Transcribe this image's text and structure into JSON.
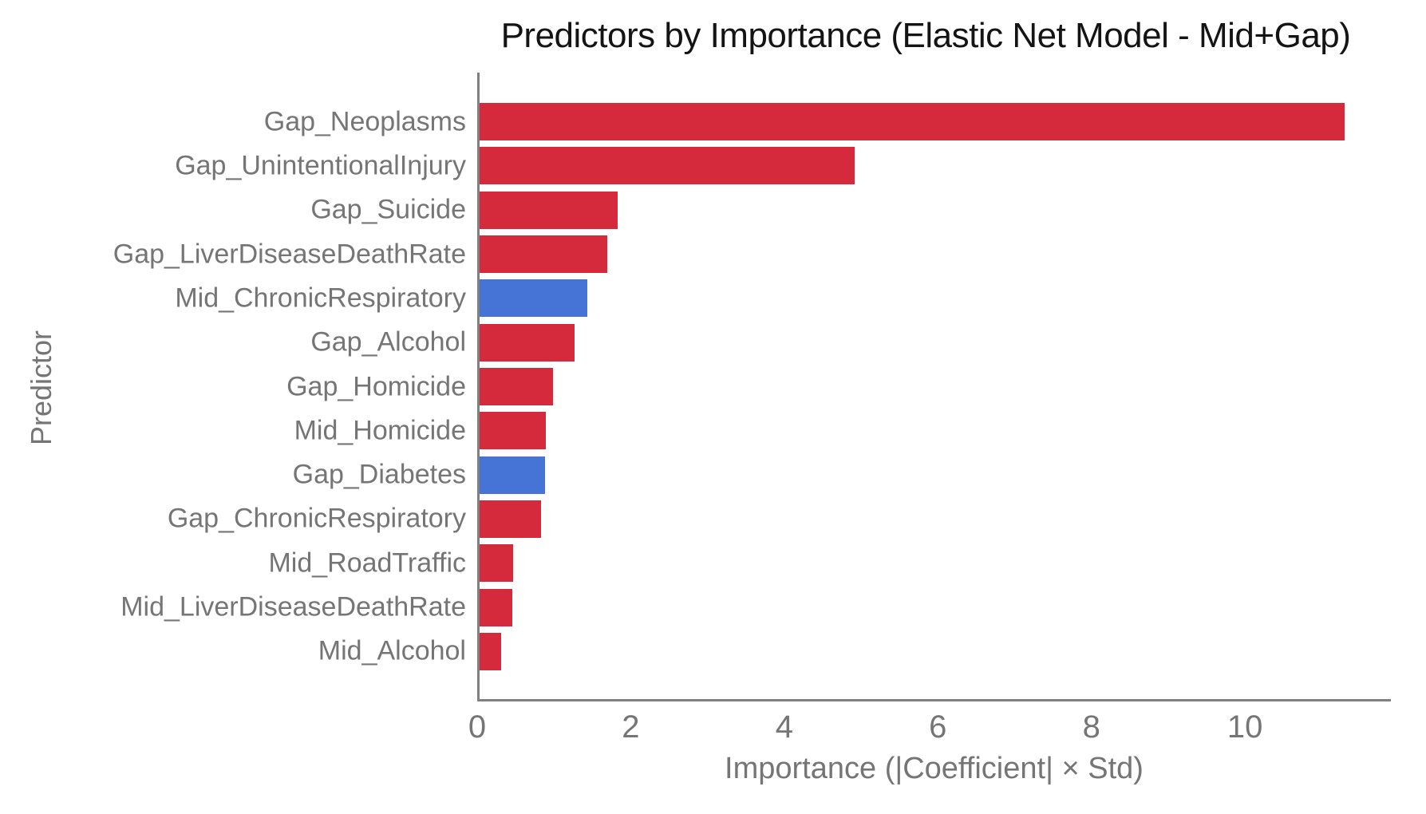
{
  "chart_data": {
    "type": "bar",
    "orientation": "horizontal",
    "title": "Predictors by Importance (Elastic Net Model - Mid+Gap)",
    "xlabel": "Importance (|Coefficient| × Std)",
    "ylabel": "Predictor",
    "categories": [
      "Gap_Neoplasms",
      "Gap_UnintentionalInjury",
      "Gap_Suicide",
      "Gap_LiverDiseaseDeathRate",
      "Mid_ChronicRespiratory",
      "Gap_Alcohol",
      "Gap_Homicide",
      "Mid_Homicide",
      "Gap_Diabetes",
      "Gap_ChronicRespiratory",
      "Mid_RoadTraffic",
      "Mid_LiverDiseaseDeathRate",
      "Mid_Alcohol"
    ],
    "values": [
      11.3,
      4.9,
      1.8,
      1.67,
      1.41,
      1.24,
      0.96,
      0.87,
      0.85,
      0.8,
      0.44,
      0.43,
      0.28
    ],
    "bar_colors": [
      "#d5293c",
      "#d5293c",
      "#d5293c",
      "#d5293c",
      "#4573d6",
      "#d5293c",
      "#d5293c",
      "#d5293c",
      "#4573d6",
      "#d5293c",
      "#d5293c",
      "#d5293c",
      "#d5293c"
    ],
    "xticks": [
      0,
      2,
      4,
      6,
      8,
      10
    ],
    "xlim": [
      0,
      11.9
    ],
    "grid": false,
    "legend": null
  },
  "style": {
    "red": "#d5293c",
    "blue": "#4573d6",
    "axis_color": "#808080",
    "text_color": "#757575",
    "title_color": "#141414",
    "background": "#ffffff"
  }
}
